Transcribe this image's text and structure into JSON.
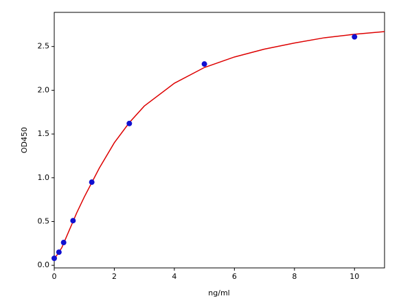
{
  "chart_data": {
    "type": "scatter",
    "x_label": "ng/ml",
    "y_label": "OD450",
    "xlim": [
      0,
      11
    ],
    "ylim": [
      -0.03,
      2.89
    ],
    "xticks": [
      0,
      2,
      4,
      6,
      8,
      10
    ],
    "yticks": [
      {
        "value": 0,
        "label": "0.0"
      },
      0.5,
      {
        "value": 1,
        "label": "1.0"
      },
      1.5,
      {
        "value": 2,
        "label": "2.0"
      },
      2.5
    ],
    "grid": false,
    "series": [
      {
        "type": "line",
        "color": "#dd0000",
        "x": [
          0,
          0.25,
          0.5,
          0.75,
          1,
          1.5,
          2,
          2.5,
          3,
          4,
          5,
          6,
          7,
          8,
          9,
          10,
          11
        ],
        "values": [
          0.07,
          0.2,
          0.4,
          0.6,
          0.78,
          1.11,
          1.4,
          1.63,
          1.82,
          2.08,
          2.26,
          2.38,
          2.47,
          2.54,
          2.6,
          2.64,
          2.67
        ]
      },
      {
        "type": "scatter",
        "color": "#1010d0",
        "x": [
          0,
          0.156,
          0.3125,
          0.625,
          1.25,
          2.5,
          5,
          10
        ],
        "values": [
          0.08,
          0.15,
          0.26,
          0.51,
          0.95,
          1.62,
          2.3,
          2.61
        ]
      }
    ]
  }
}
